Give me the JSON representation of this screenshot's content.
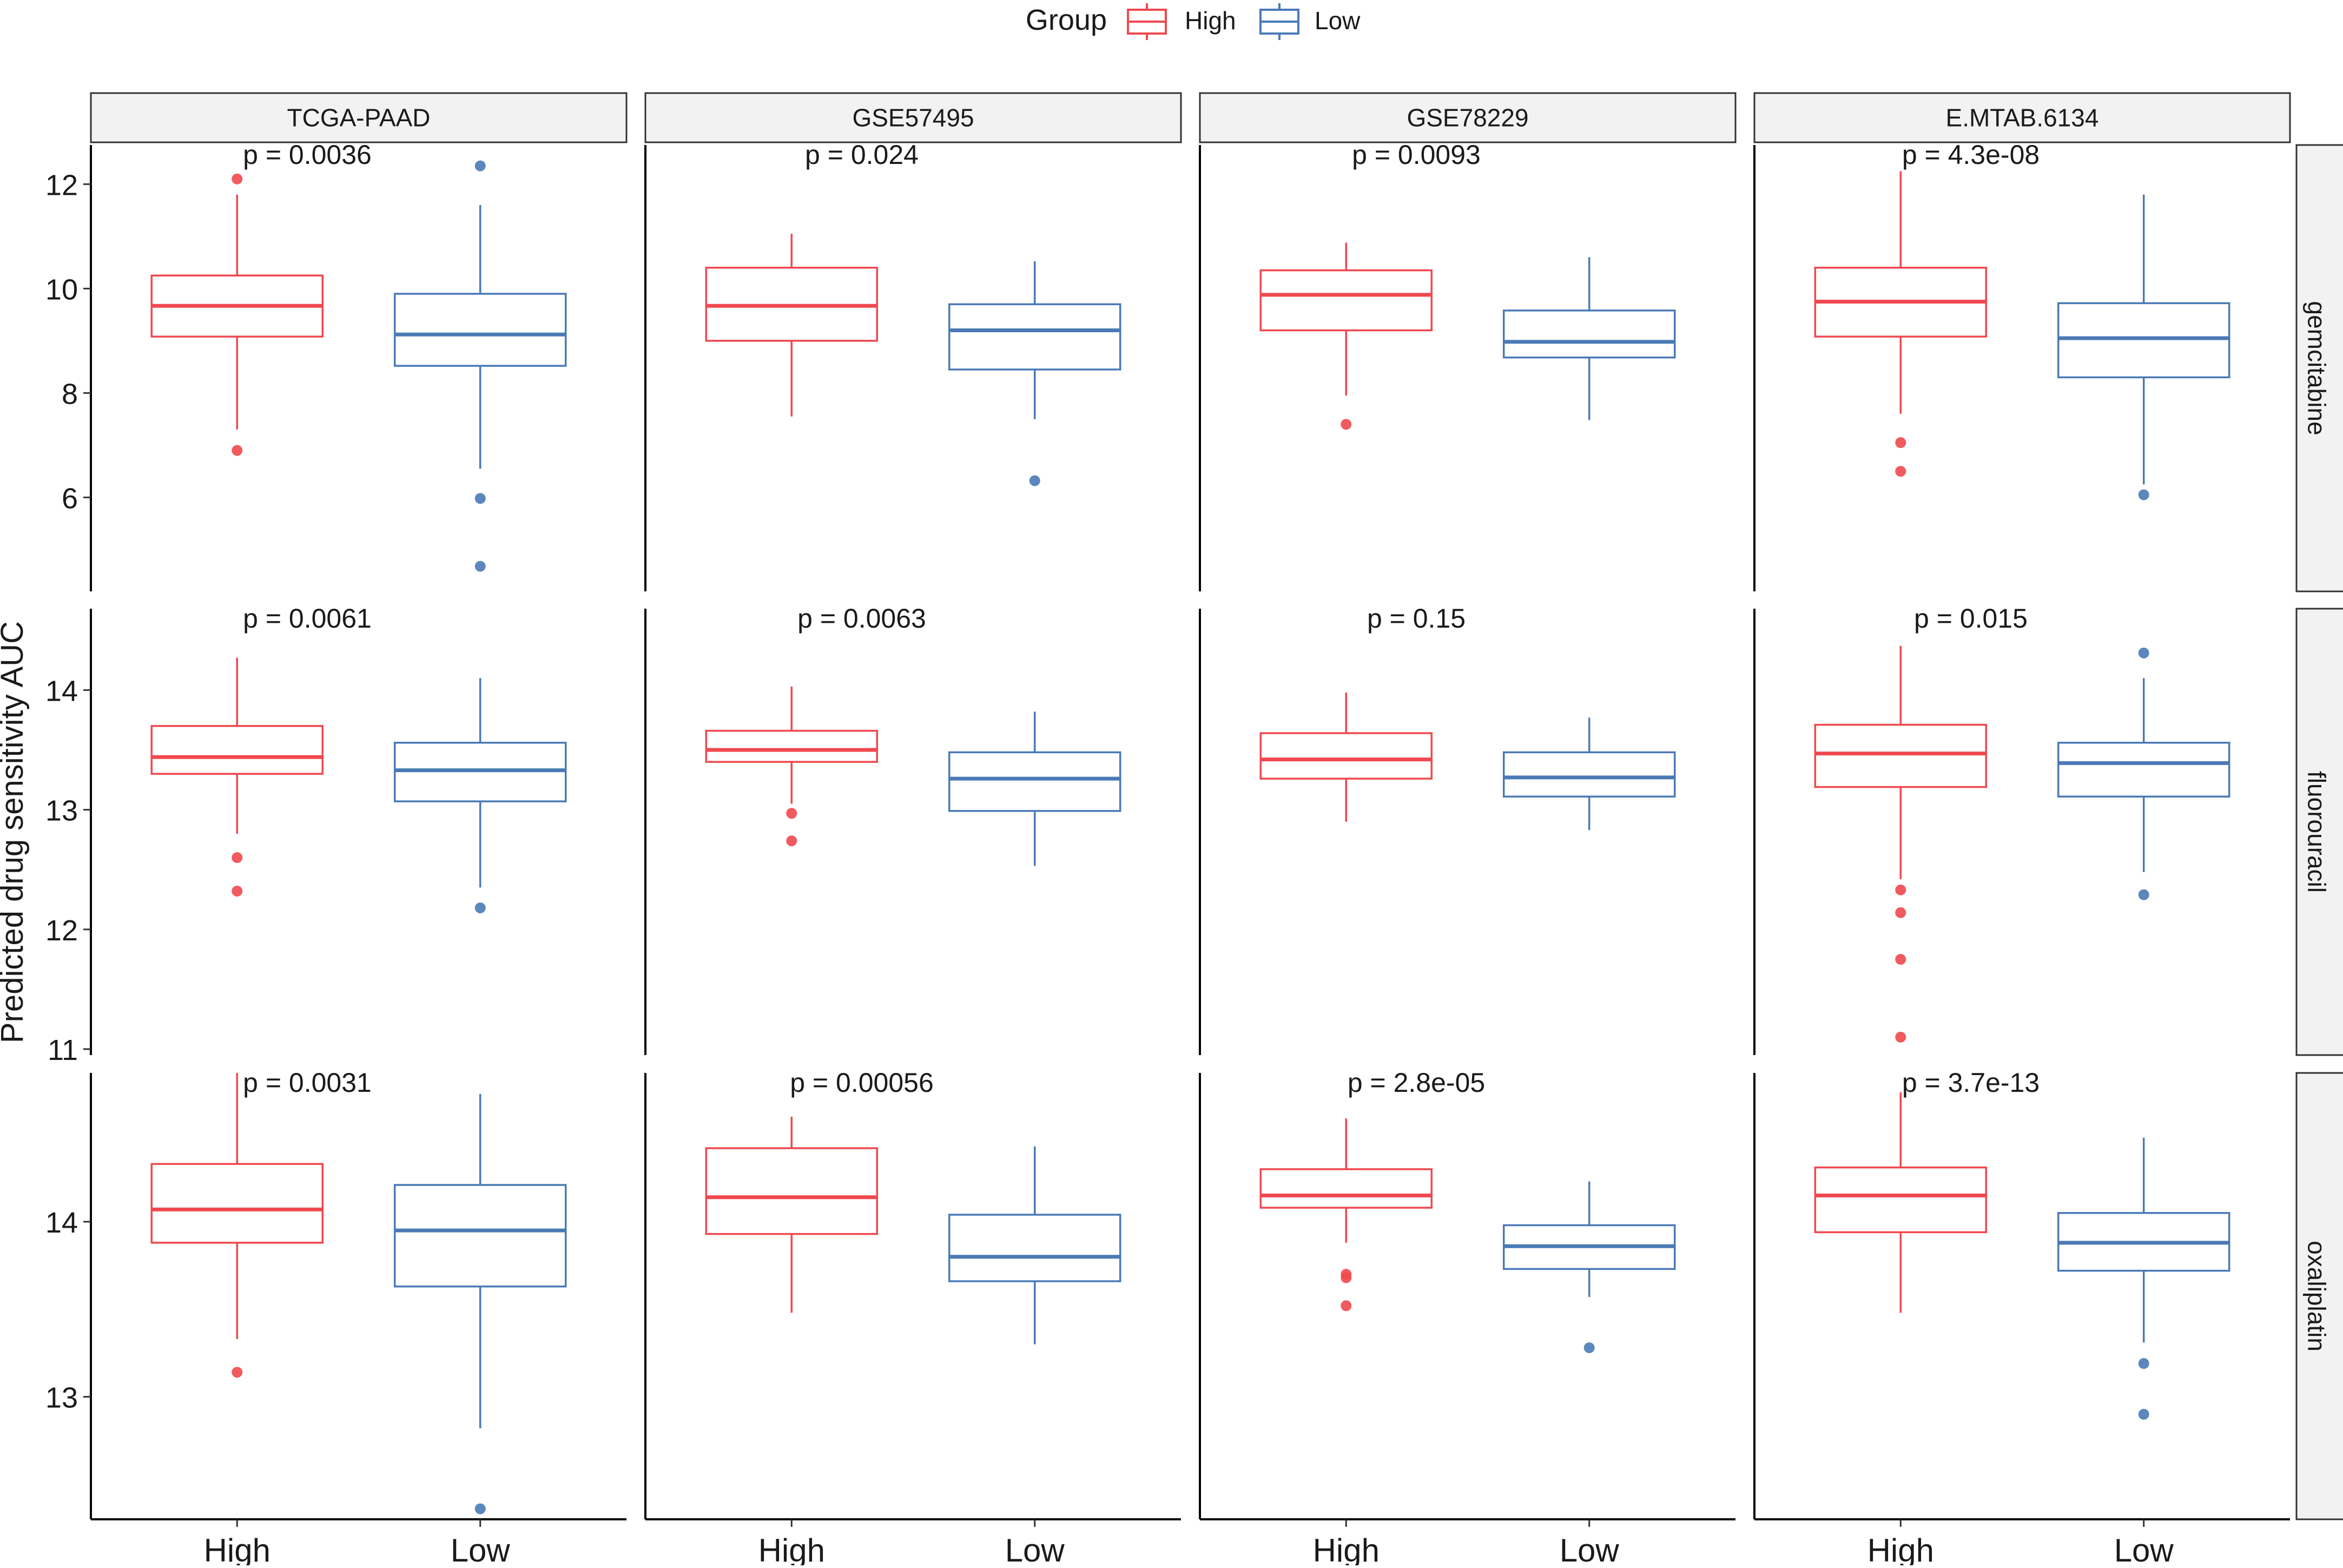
{
  "chart_data": {
    "type": "boxplot",
    "title": "",
    "ylabel": "Predicted drug sensitivity AUC",
    "xlabel": "",
    "legend": {
      "title": "Group",
      "position": "top",
      "entries": [
        {
          "label": "High",
          "color": "#f0484e"
        },
        {
          "label": "Low",
          "color": "#4a7ab5"
        }
      ]
    },
    "categories": [
      "High",
      "Low"
    ],
    "columns": [
      "TCGA-PAAD",
      "GSE57495",
      "GSE78229",
      "E.MTAB.6134"
    ],
    "rows": [
      {
        "name": "gemcitabine",
        "ylim": [
          4.2,
          12.75
        ],
        "yticks": [
          6,
          8,
          10,
          12
        ],
        "ytick_labels": [
          "6",
          "8",
          "10",
          "12"
        ],
        "panels": [
          {
            "pvalue": "p = 0.0036",
            "boxes": [
              {
                "group": "High",
                "q1": 9.08,
                "median": 9.67,
                "q3": 10.25,
                "lower": 7.3,
                "upper": 11.8,
                "outliers": [
                  12.1,
                  6.9
                ]
              },
              {
                "group": "Low",
                "q1": 8.52,
                "median": 9.12,
                "q3": 9.9,
                "lower": 6.55,
                "upper": 11.6,
                "outliers": [
                  12.35,
                  5.98,
                  4.68
                ]
              }
            ]
          },
          {
            "pvalue": "p = 0.024",
            "boxes": [
              {
                "group": "High",
                "q1": 9.0,
                "median": 9.67,
                "q3": 10.4,
                "lower": 7.55,
                "upper": 11.05,
                "outliers": []
              },
              {
                "group": "Low",
                "q1": 8.45,
                "median": 9.2,
                "q3": 9.7,
                "lower": 7.5,
                "upper": 10.52,
                "outliers": [
                  6.32
                ]
              }
            ]
          },
          {
            "pvalue": "p = 0.0093",
            "boxes": [
              {
                "group": "High",
                "q1": 9.2,
                "median": 9.88,
                "q3": 10.35,
                "lower": 7.95,
                "upper": 10.88,
                "outliers": [
                  7.4
                ]
              },
              {
                "group": "Low",
                "q1": 8.68,
                "median": 8.98,
                "q3": 9.58,
                "lower": 7.48,
                "upper": 10.6,
                "outliers": []
              }
            ]
          },
          {
            "pvalue": "p = 4.3e-08",
            "boxes": [
              {
                "group": "High",
                "q1": 9.08,
                "median": 9.75,
                "q3": 10.4,
                "lower": 7.6,
                "upper": 12.25,
                "outliers": [
                  7.05,
                  6.5
                ]
              },
              {
                "group": "Low",
                "q1": 8.3,
                "median": 9.05,
                "q3": 9.72,
                "lower": 6.25,
                "upper": 11.8,
                "outliers": [
                  6.05
                ]
              }
            ]
          }
        ]
      },
      {
        "name": "fluorouracil",
        "ylim": [
          10.95,
          14.68
        ],
        "yticks": [
          11,
          12,
          13,
          14
        ],
        "ytick_labels": [
          "11",
          "12",
          "13",
          "14"
        ],
        "panels": [
          {
            "pvalue": "p = 0.0061",
            "boxes": [
              {
                "group": "High",
                "q1": 13.3,
                "median": 13.44,
                "q3": 13.7,
                "lower": 12.8,
                "upper": 14.27,
                "outliers": [
                  12.6,
                  12.32
                ]
              },
              {
                "group": "Low",
                "q1": 13.07,
                "median": 13.33,
                "q3": 13.56,
                "lower": 12.35,
                "upper": 14.1,
                "outliers": [
                  12.18
                ]
              }
            ]
          },
          {
            "pvalue": "p = 0.0063",
            "boxes": [
              {
                "group": "High",
                "q1": 13.4,
                "median": 13.5,
                "q3": 13.66,
                "lower": 13.05,
                "upper": 14.03,
                "outliers": [
                  12.97,
                  12.74
                ]
              },
              {
                "group": "Low",
                "q1": 12.99,
                "median": 13.26,
                "q3": 13.48,
                "lower": 12.53,
                "upper": 13.82,
                "outliers": []
              }
            ]
          },
          {
            "pvalue": "p = 0.15",
            "boxes": [
              {
                "group": "High",
                "q1": 13.26,
                "median": 13.42,
                "q3": 13.64,
                "lower": 12.9,
                "upper": 13.98,
                "outliers": []
              },
              {
                "group": "Low",
                "q1": 13.11,
                "median": 13.27,
                "q3": 13.48,
                "lower": 12.83,
                "upper": 13.77,
                "outliers": []
              }
            ]
          },
          {
            "pvalue": "p = 0.015",
            "boxes": [
              {
                "group": "High",
                "q1": 13.19,
                "median": 13.47,
                "q3": 13.71,
                "lower": 12.42,
                "upper": 14.37,
                "outliers": [
                  12.33,
                  12.14,
                  11.75,
                  11.1
                ]
              },
              {
                "group": "Low",
                "q1": 13.11,
                "median": 13.39,
                "q3": 13.56,
                "lower": 12.48,
                "upper": 14.1,
                "outliers": [
                  14.31,
                  12.29
                ]
              }
            ]
          }
        ]
      },
      {
        "name": "oxaliplatin",
        "ylim": [
          12.3,
          14.85
        ],
        "yticks": [
          13,
          14
        ],
        "ytick_labels": [
          "13",
          "14"
        ],
        "panels": [
          {
            "pvalue": "p = 0.0031",
            "boxes": [
              {
                "group": "High",
                "q1": 13.88,
                "median": 14.07,
                "q3": 14.33,
                "lower": 13.33,
                "upper": 14.85,
                "outliers": [
                  13.14
                ]
              },
              {
                "group": "Low",
                "q1": 13.63,
                "median": 13.95,
                "q3": 14.21,
                "lower": 12.82,
                "upper": 14.73,
                "outliers": [
                  12.36
                ]
              }
            ]
          },
          {
            "pvalue": "p = 0.00056",
            "boxes": [
              {
                "group": "High",
                "q1": 13.93,
                "median": 14.14,
                "q3": 14.42,
                "lower": 13.48,
                "upper": 14.6,
                "outliers": []
              },
              {
                "group": "Low",
                "q1": 13.66,
                "median": 13.8,
                "q3": 14.04,
                "lower": 13.3,
                "upper": 14.43,
                "outliers": []
              }
            ]
          },
          {
            "pvalue": "p = 2.8e-05",
            "boxes": [
              {
                "group": "High",
                "q1": 14.08,
                "median": 14.15,
                "q3": 14.3,
                "lower": 13.88,
                "upper": 14.59,
                "outliers": [
                  13.7,
                  13.68,
                  13.52
                ]
              },
              {
                "group": "Low",
                "q1": 13.73,
                "median": 13.86,
                "q3": 13.98,
                "lower": 13.57,
                "upper": 14.23,
                "outliers": [
                  13.28
                ]
              }
            ]
          },
          {
            "pvalue": "p = 3.7e-13",
            "boxes": [
              {
                "group": "High",
                "q1": 13.94,
                "median": 14.15,
                "q3": 14.31,
                "lower": 13.48,
                "upper": 14.74,
                "outliers": []
              },
              {
                "group": "Low",
                "q1": 13.72,
                "median": 13.88,
                "q3": 14.05,
                "lower": 13.31,
                "upper": 14.48,
                "outliers": [
                  13.19,
                  12.9
                ]
              }
            ]
          }
        ]
      }
    ]
  }
}
